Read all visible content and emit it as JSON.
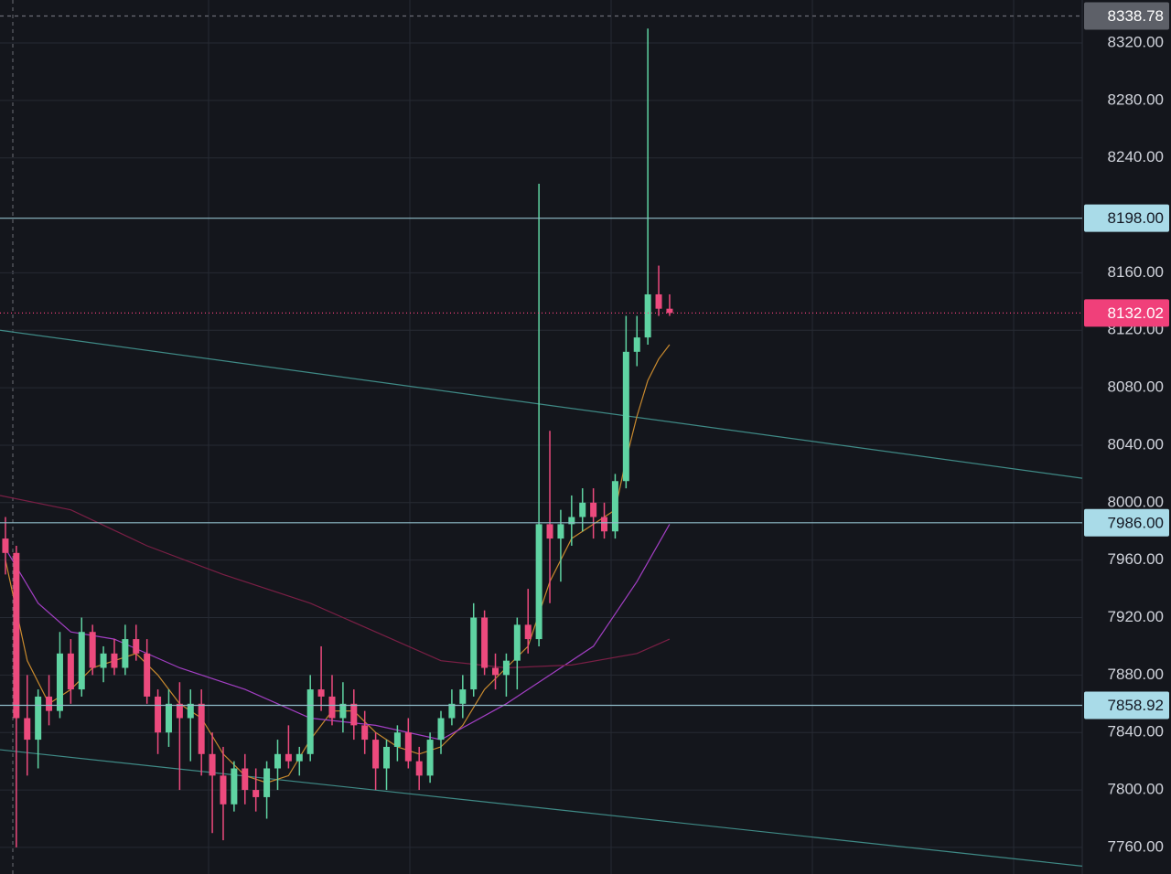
{
  "chart_data": {
    "type": "candlestick",
    "xlim": [
      -0.5,
      98.9
    ],
    "ylim": [
      7741.5,
      8349.9
    ],
    "yticks": [
      {
        "value": 8320,
        "label": "8320.00"
      },
      {
        "value": 8280,
        "label": "8280.00"
      },
      {
        "value": 8240,
        "label": "8240.00"
      },
      {
        "value": 8160,
        "label": "8160.00"
      },
      {
        "value": 8120,
        "label": "8120.00"
      },
      {
        "value": 8080,
        "label": "8080.00"
      },
      {
        "value": 8040,
        "label": "8040.00"
      },
      {
        "value": 8000,
        "label": "8000.00"
      },
      {
        "value": 7960,
        "label": "7960.00"
      },
      {
        "value": 7920,
        "label": "7920.00"
      },
      {
        "value": 7880,
        "label": "7880.00"
      },
      {
        "value": 7840,
        "label": "7840.00"
      },
      {
        "value": 7800,
        "label": "7800.00"
      },
      {
        "value": 7760,
        "label": "7760.00"
      }
    ],
    "grid": true,
    "up_color": "#5fd3a2",
    "down_color": "#ec4a7d",
    "open": [
      7975,
      7965,
      7850,
      7835,
      7865,
      7855,
      7895,
      7870,
      7910,
      7885,
      7895,
      7885,
      7905,
      7895,
      7865,
      7840,
      7860,
      7850,
      7860,
      7825,
      7810,
      7790,
      7815,
      7800,
      7795,
      7815,
      7825,
      7820,
      7825,
      7870,
      7865,
      7850,
      7860,
      7845,
      7835,
      7815,
      7830,
      7840,
      7820,
      7810,
      7835,
      7850,
      7860,
      7870,
      7920,
      7885,
      7880,
      7890,
      7915,
      7905,
      7985,
      7975,
      7985,
      7990,
      8000,
      7990,
      7980,
      8015,
      8105,
      8115,
      8145,
      8135
    ],
    "high": [
      7990,
      7970,
      7880,
      7870,
      7880,
      7910,
      7905,
      7920,
      7915,
      7900,
      7905,
      7915,
      7915,
      7905,
      7870,
      7870,
      7875,
      7870,
      7870,
      7840,
      7830,
      7820,
      7825,
      7815,
      7820,
      7835,
      7845,
      7830,
      7880,
      7900,
      7880,
      7875,
      7870,
      7855,
      7840,
      7835,
      7845,
      7850,
      7830,
      7840,
      7855,
      7870,
      7880,
      7930,
      7925,
      7895,
      7895,
      7920,
      7940,
      8222,
      8050,
      7995,
      8005,
      8010,
      8010,
      8000,
      8020,
      8130,
      8130,
      8330,
      8165,
      8145
    ],
    "low": [
      7950,
      7760,
      7810,
      7815,
      7845,
      7850,
      7860,
      7865,
      7880,
      7875,
      7880,
      7880,
      7890,
      7860,
      7825,
      7830,
      7800,
      7820,
      7810,
      7770,
      7765,
      7785,
      7790,
      7785,
      7780,
      7800,
      7815,
      7810,
      7820,
      7855,
      7845,
      7840,
      7835,
      7825,
      7800,
      7800,
      7820,
      7815,
      7800,
      7805,
      7825,
      7845,
      7850,
      7865,
      7880,
      7870,
      7865,
      7870,
      7895,
      7900,
      7930,
      7945,
      7970,
      7980,
      7975,
      7975,
      7975,
      8010,
      8095,
      8110,
      8130,
      8130
    ],
    "close": [
      7965,
      7850,
      7835,
      7865,
      7855,
      7895,
      7870,
      7910,
      7885,
      7895,
      7885,
      7905,
      7895,
      7865,
      7840,
      7860,
      7850,
      7860,
      7825,
      7810,
      7790,
      7815,
      7800,
      7795,
      7815,
      7825,
      7820,
      7825,
      7870,
      7865,
      7850,
      7860,
      7845,
      7835,
      7815,
      7830,
      7840,
      7820,
      7810,
      7835,
      7850,
      7860,
      7870,
      7920,
      7885,
      7880,
      7890,
      7915,
      7905,
      7985,
      7975,
      7985,
      7990,
      8000,
      7990,
      7980,
      8015,
      8105,
      8115,
      8145,
      8135,
      8132.02
    ],
    "ma_lines": [
      {
        "color": "#c98a2e",
        "x": [
          0,
          2,
          4,
          6,
          8,
          10,
          12,
          14,
          16,
          18,
          20,
          22,
          24,
          26,
          28,
          30,
          32,
          34,
          36,
          38,
          40,
          42,
          44,
          46,
          48,
          50,
          52,
          54,
          56,
          57,
          58,
          59,
          60,
          61
        ],
        "values": [
          7960,
          7890,
          7860,
          7870,
          7885,
          7890,
          7895,
          7880,
          7860,
          7850,
          7825,
          7810,
          7805,
          7810,
          7835,
          7855,
          7855,
          7840,
          7830,
          7825,
          7830,
          7845,
          7870,
          7885,
          7900,
          7945,
          7975,
          7985,
          7995,
          8030,
          8060,
          8085,
          8100,
          8110
        ]
      },
      {
        "color": "#a33fc4",
        "x": [
          0,
          3,
          6,
          10,
          16,
          22,
          28,
          34,
          40,
          46,
          50,
          54,
          58,
          61
        ],
        "values": [
          7968,
          7930,
          7910,
          7905,
          7885,
          7870,
          7850,
          7845,
          7835,
          7860,
          7880,
          7900,
          7945,
          7985
        ]
      },
      {
        "color": "#7a1f45",
        "x": [
          -0.5,
          6,
          13,
          20,
          28,
          34,
          40,
          46,
          52,
          58,
          61
        ],
        "values": [
          8005,
          7995,
          7970,
          7950,
          7930,
          7910,
          7890,
          7885,
          7887,
          7895,
          7905
        ]
      }
    ],
    "trend_lines": [
      {
        "color": "#3f8a86",
        "x": [
          -0.5,
          98.9
        ],
        "values": [
          8120,
          8017
        ]
      },
      {
        "color": "#3f8a86",
        "x": [
          -0.5,
          98.9
        ],
        "values": [
          7828,
          7747
        ]
      }
    ],
    "price_lines": [
      {
        "price": 8338.78,
        "color": "#6b6e76",
        "label_bg": "#5d6068",
        "text_color": "#ffffff",
        "dash": "4 4"
      },
      {
        "price": {
          "value": 8198,
          "label": "8198.00"
        },
        "color": "#8fbcc8",
        "label_bg": "#a9dbe8",
        "text_color": "#131722",
        "dash": "none"
      },
      {
        "price": 8132.02,
        "color": "#f0407a",
        "label_bg": "#f0407a",
        "text_color": "#ffffff",
        "dash": "1 3"
      },
      {
        "price": {
          "value": 7986,
          "label": "7986.00"
        },
        "color": "#8fbcc8",
        "label_bg": "#a9dbe8",
        "text_color": "#131722",
        "dash": "none"
      },
      {
        "price": 7858.92,
        "color": "#8fbcc8",
        "label_bg": "#a9dbe8",
        "text_color": "#131722",
        "dash": "none"
      }
    ]
  }
}
